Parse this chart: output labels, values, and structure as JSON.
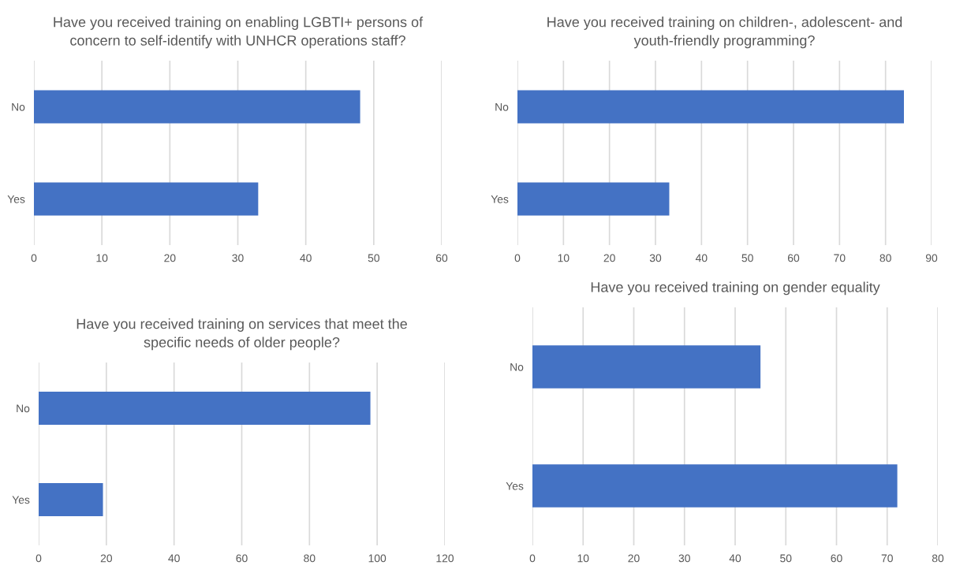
{
  "chart_data": [
    {
      "type": "bar",
      "orientation": "horizontal",
      "title": "Have you received training on enabling LGBTI+ persons of\nconcern to self-identify with UNHCR operations staff?",
      "categories": [
        "No",
        "Yes"
      ],
      "values": [
        48,
        33
      ],
      "color": "#4472c4",
      "xlim": [
        0,
        60
      ],
      "xticks": [
        0,
        10,
        20,
        30,
        40,
        50,
        60
      ],
      "grid": "x"
    },
    {
      "type": "bar",
      "orientation": "horizontal",
      "title": "Have you received training on children-, adolescent- and\nyouth-friendly programming?",
      "categories": [
        "No",
        "Yes"
      ],
      "values": [
        84,
        33
      ],
      "color": "#4472c4",
      "xlim": [
        0,
        90
      ],
      "xticks": [
        0,
        10,
        20,
        30,
        40,
        50,
        60,
        70,
        80,
        90
      ],
      "grid": "x"
    },
    {
      "type": "bar",
      "orientation": "horizontal",
      "title": "Have you received training on services that meet the\nspecific needs of older people?",
      "categories": [
        "No",
        "Yes"
      ],
      "values": [
        98,
        19
      ],
      "color": "#4472c4",
      "xlim": [
        0,
        120
      ],
      "xticks": [
        0,
        20,
        40,
        60,
        80,
        100,
        120
      ],
      "grid": "x"
    },
    {
      "type": "bar",
      "orientation": "horizontal",
      "title": "Have you received training on gender equality",
      "categories": [
        "No",
        "Yes"
      ],
      "values": [
        45,
        72
      ],
      "color": "#4472c4",
      "xlim": [
        0,
        80
      ],
      "xticks": [
        0,
        10,
        20,
        30,
        40,
        50,
        60,
        70,
        80
      ],
      "grid": "x"
    }
  ]
}
